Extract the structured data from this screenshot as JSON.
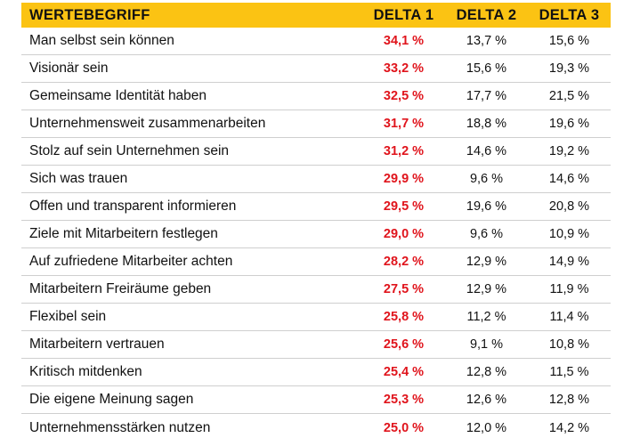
{
  "header": {
    "label": "WERTEBEGRIFF",
    "delta1": "DELTA 1",
    "delta2": "DELTA 2",
    "delta3": "DELTA 3"
  },
  "colors": {
    "header_bg": "#fbc313",
    "delta1_text": "#e0141c"
  },
  "rows": [
    {
      "label": "Man selbst sein können",
      "d1": "34,1 %",
      "d2": "13,7 %",
      "d3": "15,6 %"
    },
    {
      "label": "Visionär sein",
      "d1": "33,2 %",
      "d2": "15,6 %",
      "d3": "19,3 %"
    },
    {
      "label": "Gemeinsame Identität haben",
      "d1": "32,5 %",
      "d2": "17,7 %",
      "d3": "21,5 %"
    },
    {
      "label": "Unternehmensweit zusammenarbeiten",
      "d1": "31,7 %",
      "d2": "18,8 %",
      "d3": "19,6 %"
    },
    {
      "label": "Stolz auf sein Unternehmen sein",
      "d1": "31,2 %",
      "d2": "14,6 %",
      "d3": "19,2 %"
    },
    {
      "label": "Sich was trauen",
      "d1": "29,9 %",
      "d2": "9,6 %",
      "d3": "14,6 %"
    },
    {
      "label": "Offen und transparent informieren",
      "d1": "29,5 %",
      "d2": "19,6 %",
      "d3": "20,8 %"
    },
    {
      "label": "Ziele mit Mitarbeitern festlegen",
      "d1": "29,0 %",
      "d2": "9,6 %",
      "d3": "10,9 %"
    },
    {
      "label": "Auf zufriedene Mitarbeiter achten",
      "d1": "28,2 %",
      "d2": "12,9 %",
      "d3": "14,9 %"
    },
    {
      "label": "Mitarbeitern Freiräume geben",
      "d1": "27,5 %",
      "d2": "12,9 %",
      "d3": "11,9 %"
    },
    {
      "label": "Flexibel sein",
      "d1": "25,8 %",
      "d2": "11,2 %",
      "d3": "11,4 %"
    },
    {
      "label": "Mitarbeitern vertrauen",
      "d1": "25,6 %",
      "d2": "9,1 %",
      "d3": "10,8 %"
    },
    {
      "label": "Kritisch mitdenken",
      "d1": "25,4 %",
      "d2": "12,8 %",
      "d3": "11,5 %"
    },
    {
      "label": "Die eigene Meinung sagen",
      "d1": "25,3 %",
      "d2": "12,6 %",
      "d3": "12,8 %"
    },
    {
      "label": "Unternehmensstärken nutzen",
      "d1": "25,0 %",
      "d2": "12,0 %",
      "d3": "14,2 %"
    }
  ]
}
